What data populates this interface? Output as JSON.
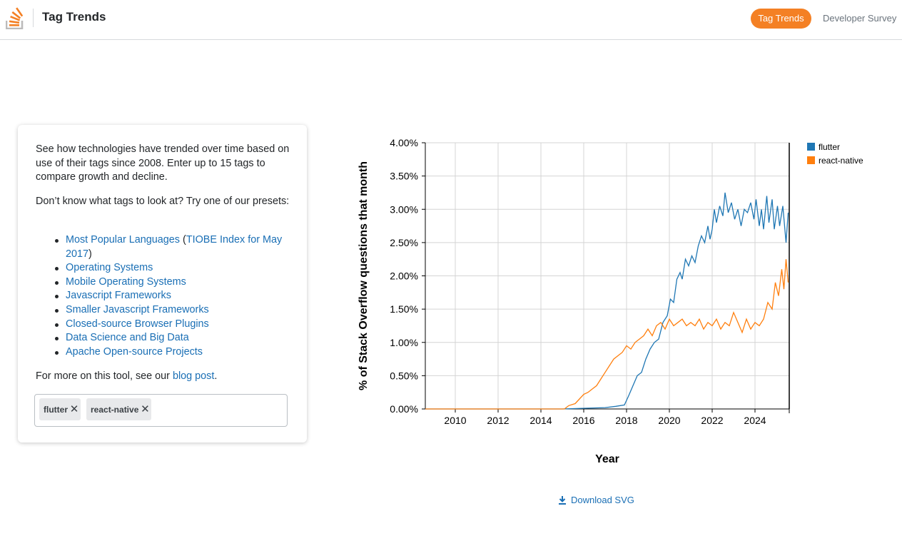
{
  "header": {
    "title": "Tag Trends",
    "nav": {
      "active": "Tag Trends",
      "other": "Developer Survey"
    }
  },
  "intro": {
    "text": "See how technologies have trended over time based on use of their tags since 2008. Enter up to 15 tags to compare growth and decline.",
    "presets_prompt": "Don’t know what tags to look at? Try one of our presets:",
    "presets": [
      "Most Popular Languages",
      "Operating Systems",
      "Mobile Operating Systems",
      "Javascript Frameworks",
      "Smaller Javascript Frameworks",
      "Closed-source Browser Plugins",
      "Data Science and Big Data",
      "Apache Open-source Projects"
    ],
    "tiobe_paren_open": " (",
    "tiobe_link": "TIOBE Index for May 2017",
    "tiobe_paren_close": ")",
    "more_prefix": "For more on this tool, see our ",
    "more_link": "blog post",
    "more_suffix": "."
  },
  "tags": [
    "flutter",
    "react-native"
  ],
  "download_label": "Download SVG",
  "colors": {
    "accent": "#f48024",
    "link": "#1a6fb5",
    "flutter": "#1f77b4",
    "react_native": "#ff7f0e"
  },
  "chart_data": {
    "type": "line",
    "xlabel": "Year",
    "ylabel": "% of Stack Overflow questions that month",
    "xlim": [
      2008.6,
      2025.6
    ],
    "ylim": [
      0,
      4
    ],
    "x_ticks": [
      "2010",
      "2012",
      "2014",
      "2016",
      "2018",
      "2020",
      "2022",
      "2024"
    ],
    "y_ticks": [
      "0.00%",
      "0.50%",
      "1.00%",
      "1.50%",
      "2.00%",
      "2.50%",
      "3.00%",
      "3.50%",
      "4.00%"
    ],
    "grid": true,
    "legend_position": "top-right",
    "series": [
      {
        "name": "flutter",
        "color": "#1f77b4",
        "points": [
          [
            2008.6,
            0
          ],
          [
            2015.0,
            0
          ],
          [
            2017.0,
            0.02
          ],
          [
            2017.5,
            0.04
          ],
          [
            2017.9,
            0.06
          ],
          [
            2018.1,
            0.2
          ],
          [
            2018.3,
            0.35
          ],
          [
            2018.5,
            0.5
          ],
          [
            2018.7,
            0.55
          ],
          [
            2018.9,
            0.75
          ],
          [
            2019.1,
            0.9
          ],
          [
            2019.3,
            1.0
          ],
          [
            2019.5,
            1.05
          ],
          [
            2019.7,
            1.3
          ],
          [
            2019.9,
            1.4
          ],
          [
            2020.05,
            1.65
          ],
          [
            2020.2,
            1.6
          ],
          [
            2020.35,
            1.95
          ],
          [
            2020.5,
            2.05
          ],
          [
            2020.6,
            1.95
          ],
          [
            2020.75,
            2.25
          ],
          [
            2020.9,
            2.15
          ],
          [
            2021.05,
            2.3
          ],
          [
            2021.2,
            2.2
          ],
          [
            2021.35,
            2.45
          ],
          [
            2021.5,
            2.6
          ],
          [
            2021.65,
            2.5
          ],
          [
            2021.8,
            2.75
          ],
          [
            2021.9,
            2.55
          ],
          [
            2022.0,
            2.7
          ],
          [
            2022.1,
            3.0
          ],
          [
            2022.2,
            2.8
          ],
          [
            2022.35,
            3.05
          ],
          [
            2022.5,
            2.9
          ],
          [
            2022.6,
            3.25
          ],
          [
            2022.75,
            2.95
          ],
          [
            2022.9,
            3.1
          ],
          [
            2023.05,
            2.85
          ],
          [
            2023.2,
            3.0
          ],
          [
            2023.35,
            2.75
          ],
          [
            2023.5,
            3.0
          ],
          [
            2023.65,
            2.95
          ],
          [
            2023.8,
            3.1
          ],
          [
            2023.95,
            2.85
          ],
          [
            2024.05,
            3.15
          ],
          [
            2024.2,
            2.75
          ],
          [
            2024.3,
            3.0
          ],
          [
            2024.4,
            2.7
          ],
          [
            2024.55,
            3.2
          ],
          [
            2024.65,
            2.8
          ],
          [
            2024.8,
            3.15
          ],
          [
            2024.9,
            2.7
          ],
          [
            2025.05,
            3.05
          ],
          [
            2025.15,
            2.75
          ],
          [
            2025.3,
            3.05
          ],
          [
            2025.45,
            2.5
          ],
          [
            2025.55,
            2.95
          ]
        ]
      },
      {
        "name": "react-native",
        "color": "#ff7f0e",
        "points": [
          [
            2008.6,
            0
          ],
          [
            2015.1,
            0
          ],
          [
            2015.3,
            0.05
          ],
          [
            2015.6,
            0.08
          ],
          [
            2015.8,
            0.15
          ],
          [
            2016.0,
            0.22
          ],
          [
            2016.2,
            0.25
          ],
          [
            2016.4,
            0.3
          ],
          [
            2016.6,
            0.35
          ],
          [
            2016.8,
            0.45
          ],
          [
            2017.0,
            0.55
          ],
          [
            2017.2,
            0.65
          ],
          [
            2017.4,
            0.75
          ],
          [
            2017.6,
            0.8
          ],
          [
            2017.8,
            0.85
          ],
          [
            2018.0,
            0.95
          ],
          [
            2018.2,
            0.9
          ],
          [
            2018.4,
            1.0
          ],
          [
            2018.6,
            1.05
          ],
          [
            2018.8,
            1.1
          ],
          [
            2019.0,
            1.2
          ],
          [
            2019.2,
            1.1
          ],
          [
            2019.4,
            1.25
          ],
          [
            2019.6,
            1.3
          ],
          [
            2019.8,
            1.2
          ],
          [
            2020.0,
            1.35
          ],
          [
            2020.2,
            1.25
          ],
          [
            2020.4,
            1.3
          ],
          [
            2020.6,
            1.35
          ],
          [
            2020.8,
            1.25
          ],
          [
            2021.0,
            1.3
          ],
          [
            2021.2,
            1.25
          ],
          [
            2021.4,
            1.35
          ],
          [
            2021.6,
            1.2
          ],
          [
            2021.8,
            1.3
          ],
          [
            2022.0,
            1.25
          ],
          [
            2022.2,
            1.35
          ],
          [
            2022.4,
            1.2
          ],
          [
            2022.6,
            1.3
          ],
          [
            2022.8,
            1.25
          ],
          [
            2023.0,
            1.45
          ],
          [
            2023.2,
            1.3
          ],
          [
            2023.4,
            1.15
          ],
          [
            2023.6,
            1.35
          ],
          [
            2023.8,
            1.2
          ],
          [
            2024.0,
            1.3
          ],
          [
            2024.2,
            1.25
          ],
          [
            2024.4,
            1.35
          ],
          [
            2024.6,
            1.6
          ],
          [
            2024.8,
            1.5
          ],
          [
            2024.95,
            1.9
          ],
          [
            2025.1,
            1.7
          ],
          [
            2025.25,
            2.1
          ],
          [
            2025.35,
            1.8
          ],
          [
            2025.45,
            2.25
          ],
          [
            2025.55,
            1.9
          ]
        ]
      }
    ]
  }
}
